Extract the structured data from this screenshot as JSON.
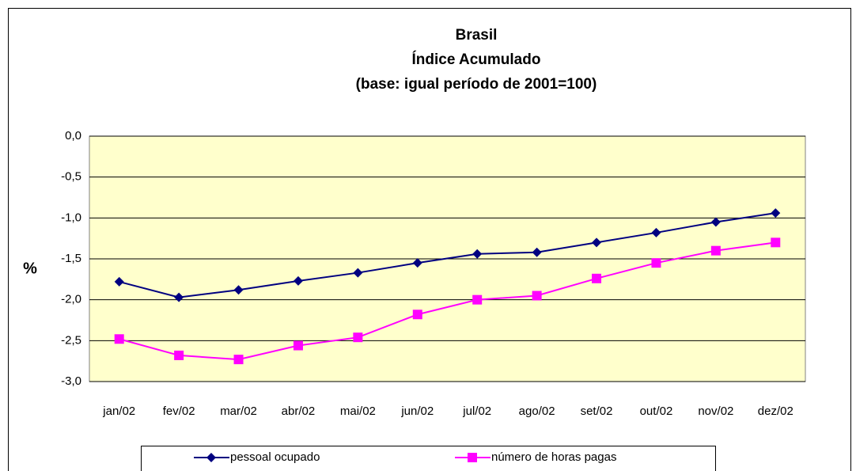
{
  "chart_data": {
    "type": "line",
    "title_lines": [
      "Brasil",
      "Índice Acumulado",
      "(base: igual período de 2001=100)"
    ],
    "y_label": "%",
    "categories": [
      "jan/02",
      "fev/02",
      "mar/02",
      "abr/02",
      "mai/02",
      "jun/02",
      "jul/02",
      "ago/02",
      "set/02",
      "out/02",
      "nov/02",
      "dez/02"
    ],
    "series": [
      {
        "name": "pessoal ocupado",
        "color": "#000080",
        "marker": "diamond",
        "values": [
          -1.78,
          -1.97,
          -1.88,
          -1.77,
          -1.67,
          -1.55,
          -1.44,
          -1.42,
          -1.3,
          -1.18,
          -1.05,
          -0.94
        ]
      },
      {
        "name": "número de horas pagas",
        "color": "#ff00ff",
        "marker": "square",
        "values": [
          -2.48,
          -2.68,
          -2.73,
          -2.56,
          -2.46,
          -2.18,
          -2.0,
          -1.95,
          -1.74,
          -1.55,
          -1.4,
          -1.3
        ]
      }
    ],
    "ylim": [
      -3,
      0
    ],
    "yticks": [
      {
        "value": 0,
        "label": "0,0"
      },
      {
        "value": -0.5,
        "label": "-0,5"
      },
      {
        "value": -1,
        "label": "-1,0"
      },
      {
        "value": -1.5,
        "label": "-1,5"
      },
      {
        "value": -2,
        "label": "-2,0"
      },
      {
        "value": -2.5,
        "label": "-2,5"
      },
      {
        "value": -3,
        "label": "-3,0"
      }
    ],
    "grid": true,
    "plot_background": "#ffffcc",
    "legend": "bottom"
  }
}
